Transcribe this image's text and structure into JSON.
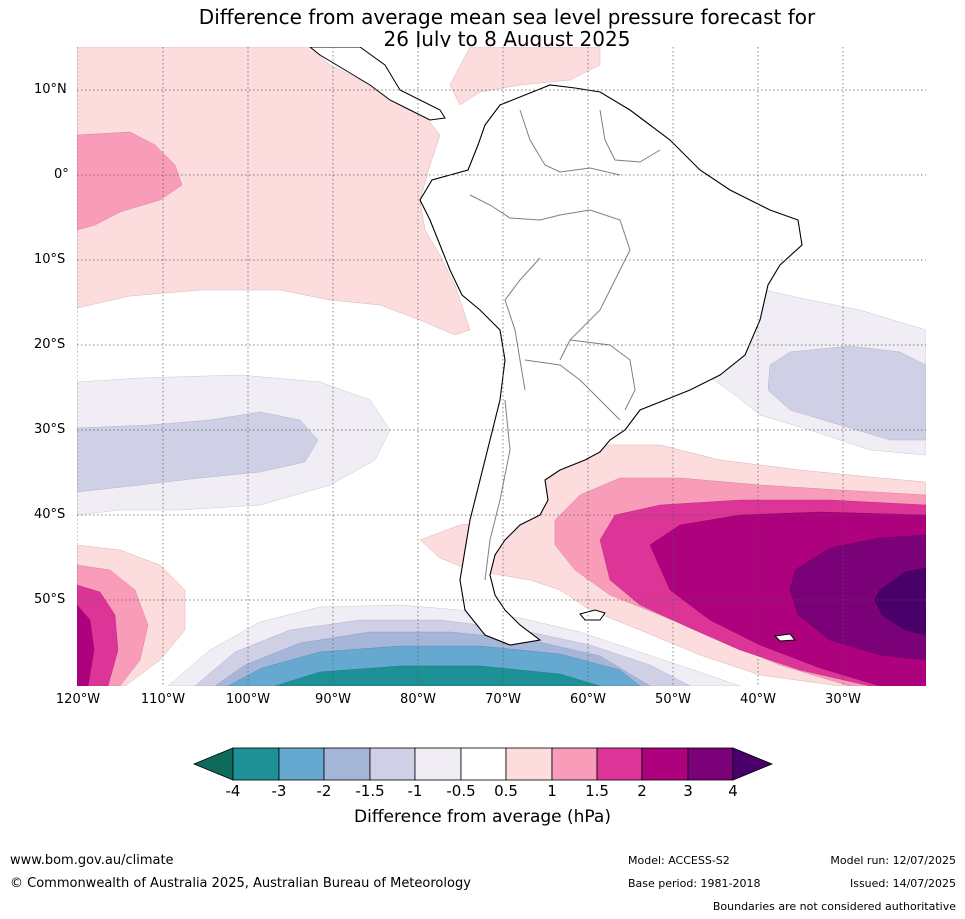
{
  "title": {
    "line1": "Difference from average mean sea level pressure forecast for",
    "line2": "26 July to 8 August 2025"
  },
  "map": {
    "lat_ticks": [
      "10°N",
      "0°",
      "10°S",
      "20°S",
      "30°S",
      "40°S",
      "50°S"
    ],
    "lon_ticks": [
      "120°W",
      "110°W",
      "100°W",
      "90°W",
      "80°W",
      "70°W",
      "60°W",
      "50°W",
      "40°W",
      "30°W"
    ],
    "colors": {
      "m4": "#0e6b5c",
      "m3": "#1e9196",
      "m2": "#66a9d0",
      "m15": "#a6b6d8",
      "m1": "#cfd0e5",
      "m05": "#f1edf4",
      "zero": "#ffffff",
      "p05": "#fddcdd",
      "p1": "#f99cb9",
      "p15": "#dd3497",
      "p2": "#ae017e",
      "p3": "#7a0177",
      "p4": "#49006a"
    }
  },
  "colorbar": {
    "labels": [
      "-4",
      "-3",
      "-2",
      "-1.5",
      "-1",
      "-0.5",
      "0.5",
      "1",
      "1.5",
      "2",
      "3",
      "4"
    ],
    "title": "Difference from average (hPa)"
  },
  "footer": {
    "website": "www.bom.gov.au/climate",
    "copyright": "© Commonwealth of Australia 2025, Australian Bureau of Meteorology",
    "model": "Model: ACCESS-S2",
    "base_period": "Base period: 1981-2018",
    "model_run": "Model run: 12/07/2025",
    "issued": "Issued: 14/07/2025",
    "disclaimer": "Boundaries are not considered authoritative"
  }
}
